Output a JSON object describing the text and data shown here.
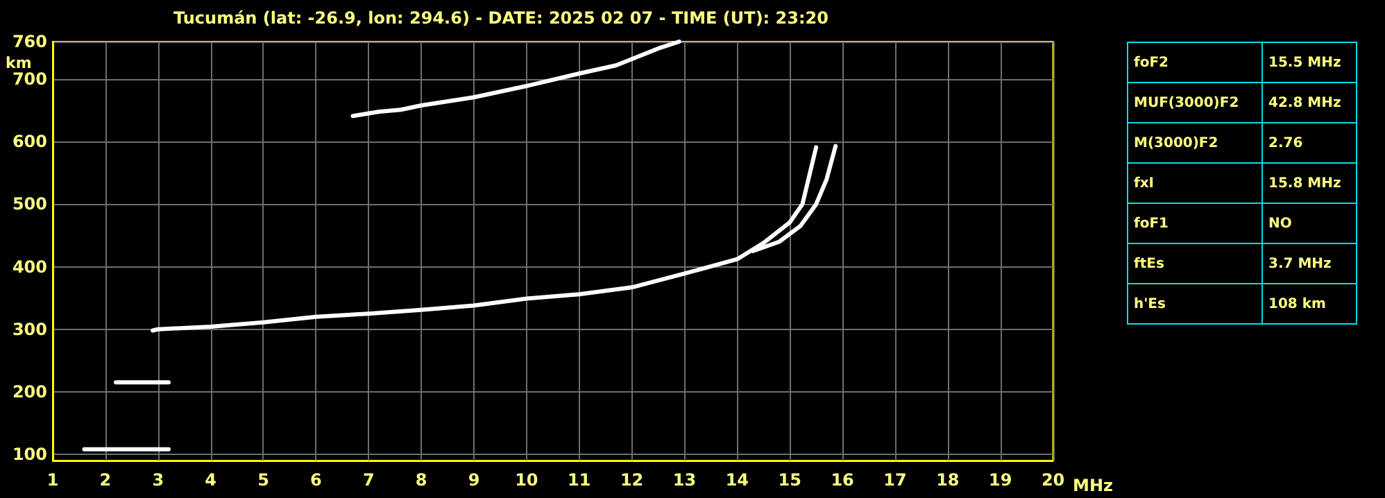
{
  "chart_data": [
    {
      "type": "line",
      "title": "Tucumán (lat: -26.9, lon: 294.6) - DATE: 2025 02 07 - TIME (UT): 23:20",
      "xlabel": "MHz",
      "ylabel": "km",
      "xlim": [
        1,
        20
      ],
      "xticks": [
        1,
        2,
        3,
        4,
        5,
        6,
        7,
        8,
        9,
        10,
        11,
        12,
        13,
        14,
        15,
        16,
        17,
        18,
        19,
        20
      ],
      "ylim": [
        90,
        760
      ],
      "yticks": [
        100,
        200,
        300,
        400,
        500,
        600,
        700,
        760
      ],
      "grid": true,
      "marker": "none",
      "line_style": "solid",
      "series": [
        {
          "color": "#ffffff",
          "x": [
            2.9,
            3,
            4,
            5,
            6,
            7,
            8,
            9,
            10,
            11,
            12,
            13,
            14,
            14.5,
            15,
            15.24,
            15.5
          ],
          "values": [
            298,
            300,
            304,
            311,
            320,
            325,
            331,
            338,
            349,
            356,
            367,
            389,
            412,
            438,
            471,
            500,
            591
          ]
        },
        {
          "color": "#ffffff",
          "x": [
            14.3,
            14.8,
            15.2,
            15.5,
            15.7,
            15.87
          ],
          "values": [
            425,
            440,
            465,
            500,
            540,
            593
          ]
        },
        {
          "color": "#ffffff",
          "x": [
            6.7,
            7.2,
            7.61,
            8,
            9,
            10,
            11,
            11.7,
            12.5,
            12.9
          ],
          "values": [
            641,
            648,
            651,
            658,
            671,
            689,
            709,
            722,
            749,
            760
          ]
        },
        {
          "color": "#ffffff",
          "x": [
            1.6,
            3.2
          ],
          "values": [
            108,
            108
          ]
        },
        {
          "color": "#ffffff",
          "x": [
            2.2,
            3.2
          ],
          "values": [
            215,
            215
          ]
        }
      ]
    },
    {
      "type": "other",
      "categories": [
        "foF2",
        "MUF(3000)F2",
        "M(3000)F2",
        "fxI",
        "foF1",
        "ftEs",
        "h'Es"
      ],
      "value_labels": [
        "15.5 MHz",
        "42.8 MHz",
        "2.76",
        "15.8 MHz",
        "NO",
        "3.7 MHz",
        "108 km"
      ]
    }
  ]
}
